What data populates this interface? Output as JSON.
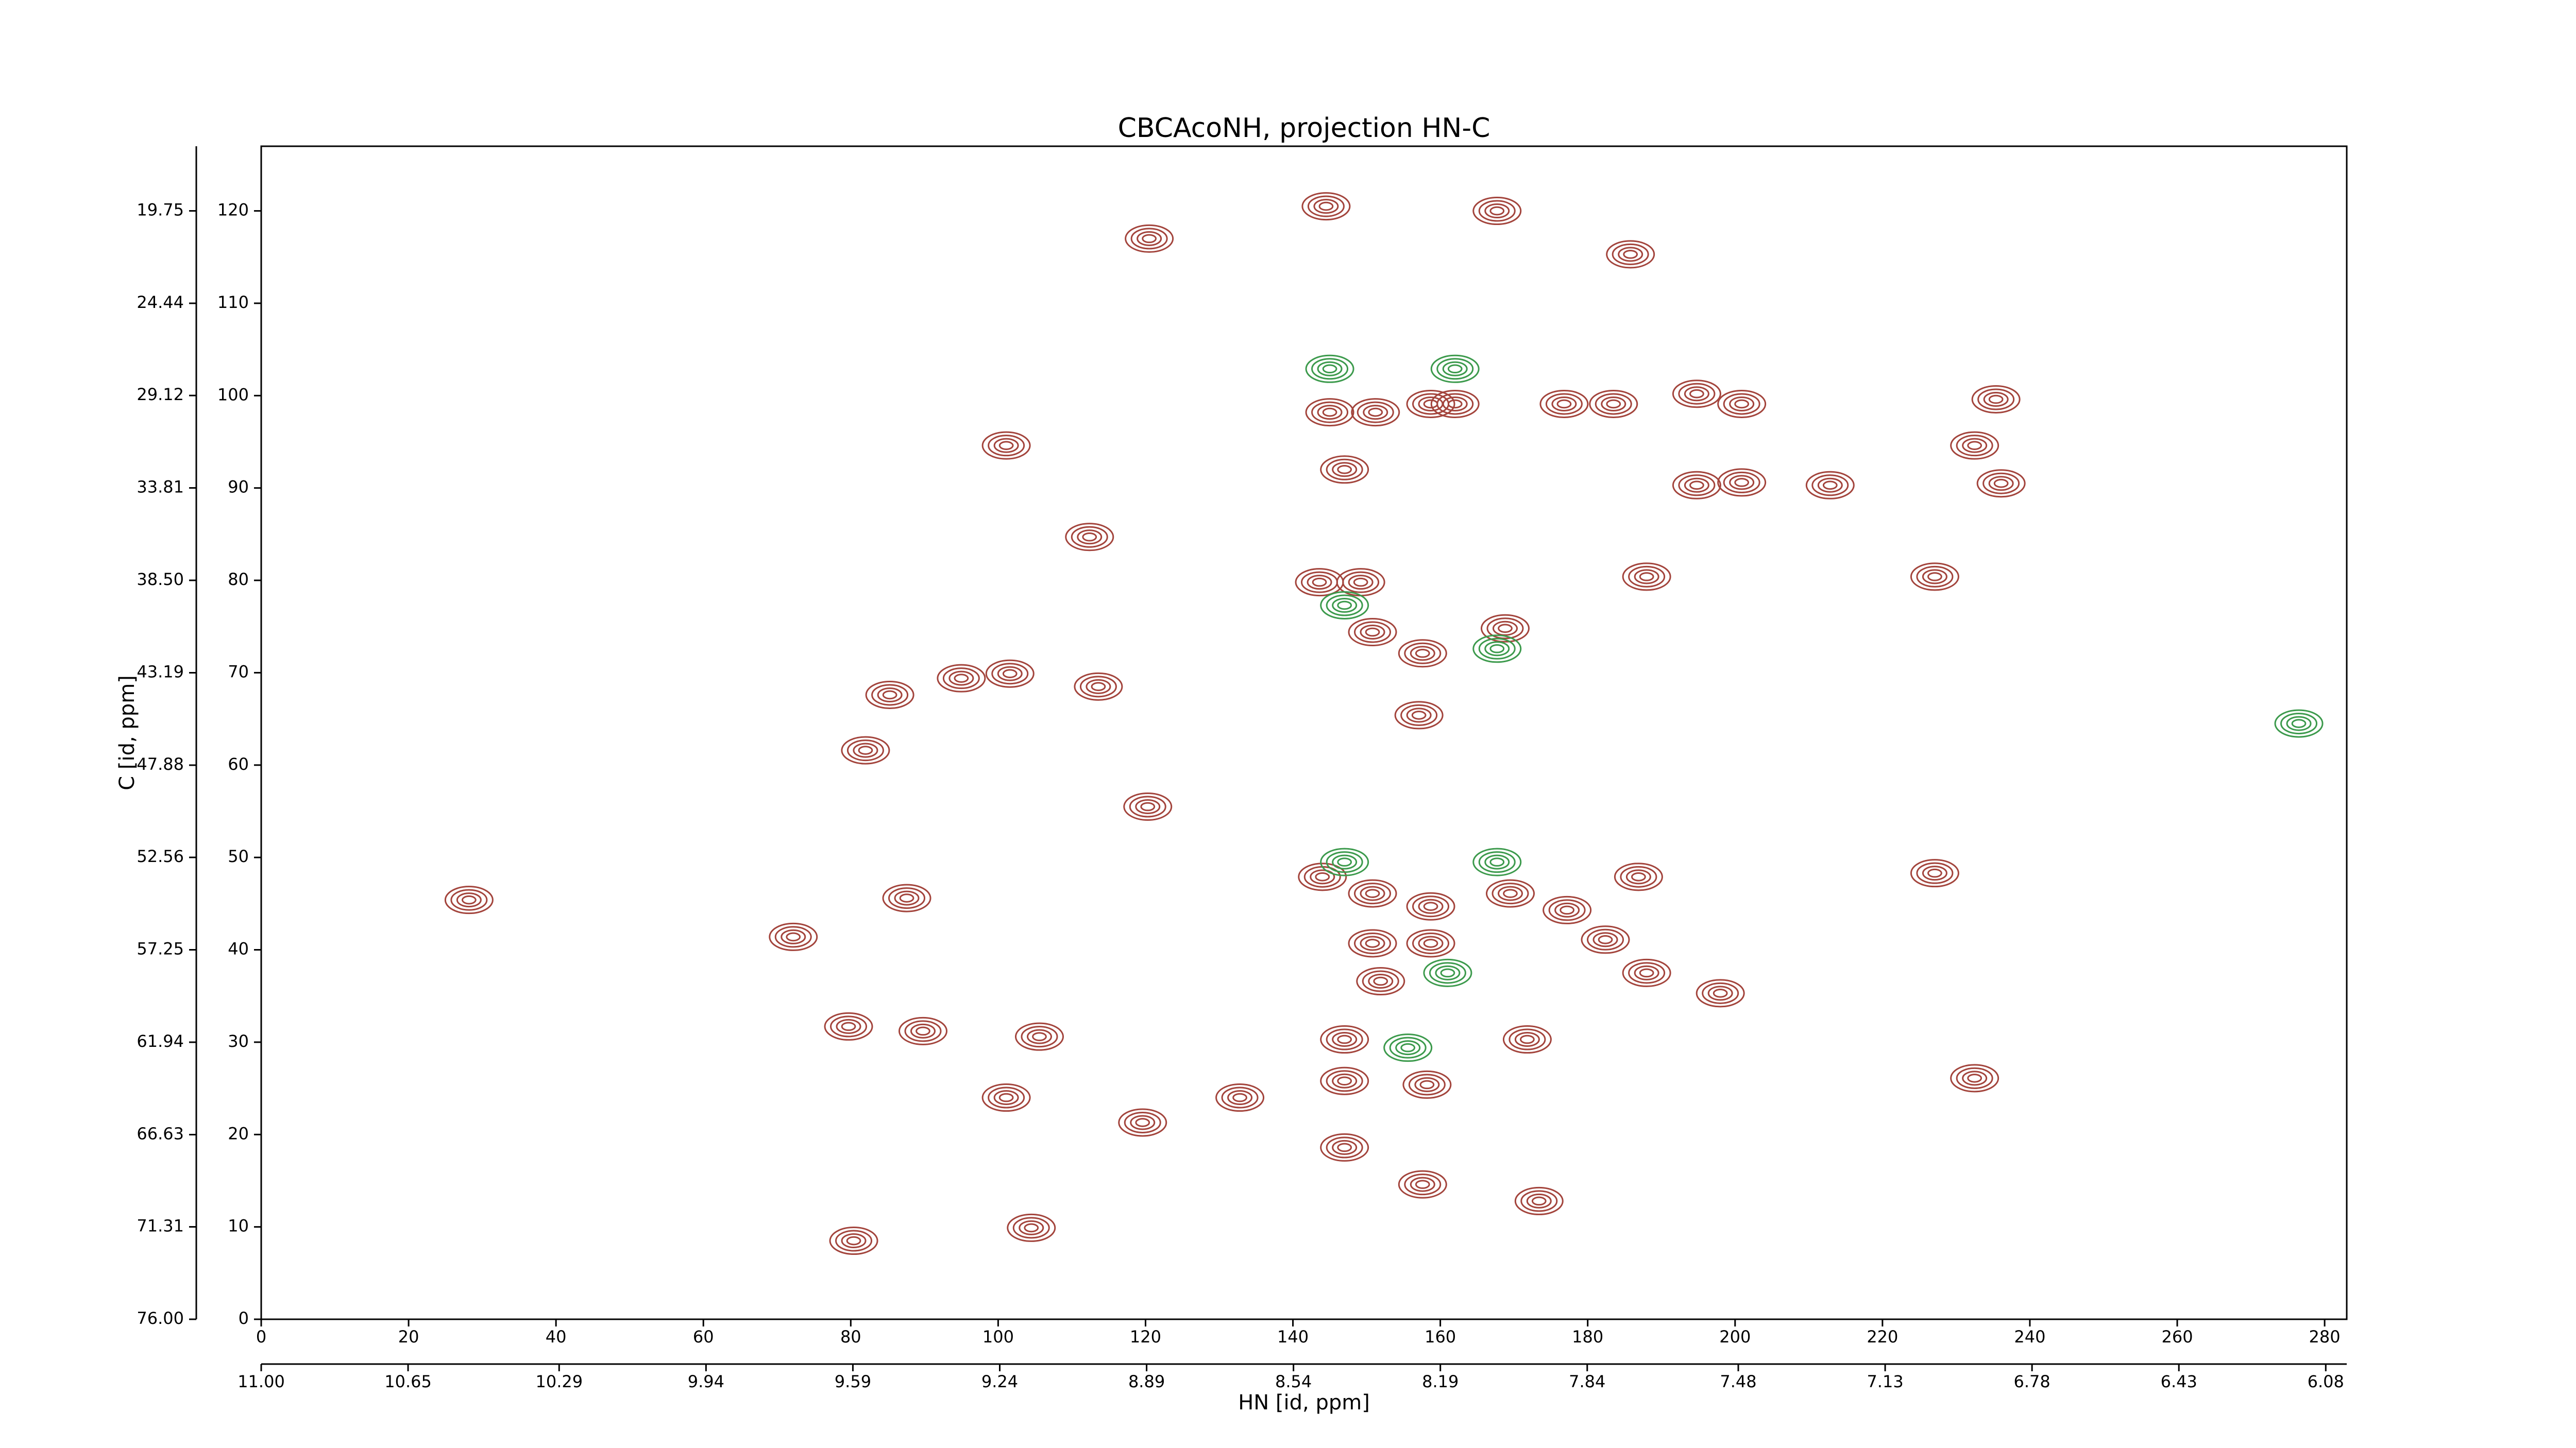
{
  "chart_data": {
    "type": "contour",
    "title": "CBCAcoNH, projection HN-C",
    "x_label": "HN [id, ppm]",
    "y_label": "C [id, ppm]",
    "xlim": [
      0,
      283
    ],
    "xticks": [
      0,
      20,
      40,
      60,
      80,
      100,
      120,
      140,
      160,
      180,
      200,
      220,
      240,
      260,
      280
    ],
    "ylim": [
      0,
      127
    ],
    "yticks": [
      0,
      10,
      20,
      30,
      40,
      50,
      60,
      70,
      80,
      90,
      100,
      110,
      120
    ],
    "x2lim": [
      11.0,
      6.03
    ],
    "x2ticks": [
      {
        "value": 11.0,
        "label": "11.00"
      },
      10.65,
      10.29,
      9.94,
      9.59,
      9.24,
      8.89,
      8.54,
      8.19,
      7.84,
      7.48,
      7.13,
      6.78,
      6.43,
      6.08
    ],
    "y2lim": [
      76.0,
      16.47
    ],
    "y2ticks": [
      {
        "value": 76.0,
        "label": "76.00"
      },
      71.31,
      66.63,
      61.94,
      57.25,
      52.56,
      47.88,
      43.19,
      {
        "value": 38.5,
        "label": "38.50"
      },
      33.81,
      29.12,
      24.44,
      19.75
    ],
    "series": [
      {
        "color": "#a3443c",
        "x": [
          144.5,
          120.5,
          167.7,
          185.8,
          145,
          151.2,
          158.7,
          162,
          176.8,
          183.5,
          194.8,
          200.9,
          235.4,
          101.1,
          147,
          194.8,
          200.9,
          212.9,
          232.5,
          236.1,
          112.4,
          143.6,
          149.2,
          188,
          227.1,
          150.8,
          157.6,
          168.8,
          95,
          101.6,
          113.6,
          157.1,
          85.3,
          82,
          120.3,
          144,
          150.8,
          158.7,
          169.5,
          177.2,
          186.9,
          227.1,
          87.6,
          28.2,
          72.2,
          150.8,
          158.7,
          182.4,
          151.9,
          188,
          198,
          79.7,
          89.8,
          105.6,
          147,
          171.8,
          147,
          158.2,
          232.5,
          101.1,
          119.6,
          132.8,
          157.6,
          173.4,
          104.5,
          80.4,
          147
        ],
        "values": [
          120.5,
          117,
          120,
          115.3,
          98.2,
          98.2,
          99.1,
          99.1,
          99.1,
          99.1,
          100.2,
          99.1,
          99.6,
          94.6,
          92,
          90.3,
          90.6,
          90.3,
          94.6,
          90.5,
          84.7,
          79.8,
          79.8,
          80.4,
          80.4,
          74.4,
          72.1,
          74.8,
          69.4,
          69.9,
          68.5,
          65.4,
          67.6,
          61.6,
          55.5,
          47.9,
          46.1,
          44.7,
          46.1,
          44.3,
          47.9,
          48.3,
          45.6,
          45.4,
          41.4,
          40.7,
          40.7,
          41.1,
          36.6,
          37.5,
          35.3,
          31.7,
          31.2,
          30.6,
          30.3,
          30.3,
          25.8,
          25.4,
          26.1,
          24,
          21.3,
          24,
          14.6,
          12.8,
          9.9,
          8.5,
          18.6
        ]
      },
      {
        "color": "#3c9a4c",
        "x": [
          145,
          162,
          147,
          167.7,
          147,
          167.7,
          161,
          155.6,
          276.5
        ],
        "values": [
          102.9,
          102.9,
          77.3,
          72.6,
          49.5,
          49.5,
          37.5,
          29.4,
          64.5
        ]
      }
    ]
  }
}
